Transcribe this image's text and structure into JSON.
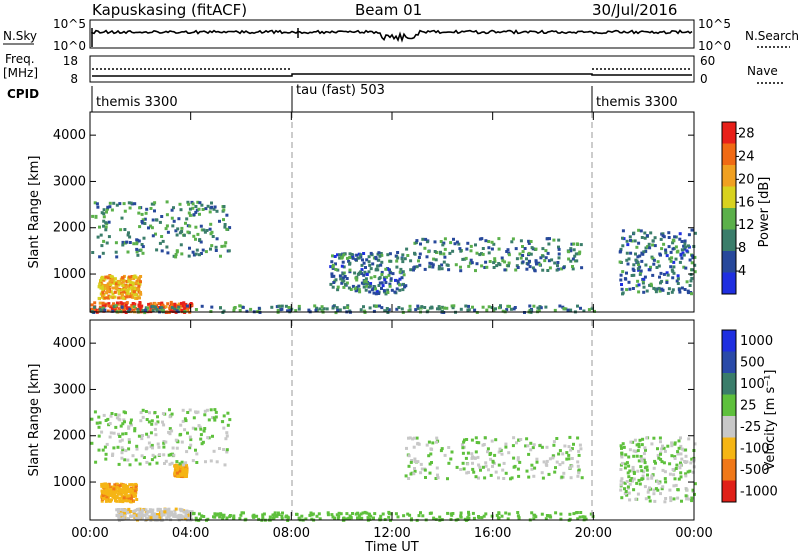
{
  "header": {
    "station": "Kapuskasing (fitACF)",
    "beam": "Beam 01",
    "date": "30/Jul/2016"
  },
  "strip_panels": {
    "nsky_label": "N.Sky",
    "nsky_ticks": [
      "10^5",
      "10^0"
    ],
    "nsearch_label": "N.Search",
    "nsearch_ticks": [
      "10^5",
      "10^0"
    ],
    "freq_label_1": "Freq.",
    "freq_label_2": "[MHz]",
    "freq_ticks": [
      "18",
      "8"
    ],
    "nave_label": "Nave",
    "nave_ticks": [
      "60",
      "0"
    ],
    "cpid_label": "CPID",
    "cpid_segments": [
      {
        "name": "themis 3300",
        "start_hour": 0,
        "end_hour": 8
      },
      {
        "name": "tau (fast) 503",
        "start_hour": 8,
        "end_hour": 20
      },
      {
        "name": "themis 3300",
        "start_hour": 20,
        "end_hour": 24
      }
    ]
  },
  "chart_data": [
    {
      "type": "heatmap",
      "title": "",
      "xlabel": "Time UT",
      "ylabel": "Slant Range [km]",
      "xlim": [
        0,
        24
      ],
      "ylim": [
        180,
        4500
      ],
      "x_ticks": [
        "00:00",
        "04:00",
        "08:00",
        "12:00",
        "16:00",
        "20:00",
        "00:00"
      ],
      "y_ticks": [
        1000,
        2000,
        3000,
        4000
      ],
      "colorbar": {
        "label": "Power [dB]",
        "ticks": [
          4,
          8,
          12,
          16,
          20,
          24,
          28
        ],
        "range": [
          0,
          30
        ],
        "colors": [
          "#1f2fe0",
          "#27489b",
          "#3a7d6a",
          "#5bb04a",
          "#d8d21e",
          "#f0a020",
          "#f06a14",
          "#e8201a"
        ]
      },
      "echo_regions": [
        {
          "t0": 0.0,
          "t1": 4.0,
          "r0": 200,
          "r1": 420,
          "value": 26
        },
        {
          "t0": 0.3,
          "t1": 2.0,
          "r0": 500,
          "r1": 1000,
          "value": 20
        },
        {
          "t0": 0.0,
          "t1": 20.0,
          "r0": 200,
          "r1": 350,
          "value": 10
        },
        {
          "t0": 0.0,
          "t1": 5.5,
          "r0": 1400,
          "r1": 2600,
          "value": 10
        },
        {
          "t0": 9.5,
          "t1": 12.5,
          "r0": 600,
          "r1": 1500,
          "value": 8
        },
        {
          "t0": 12.5,
          "t1": 19.5,
          "r0": 1100,
          "r1": 1800,
          "value": 9
        },
        {
          "t0": 21.0,
          "t1": 24.0,
          "r0": 600,
          "r1": 2000,
          "value": 8
        }
      ]
    },
    {
      "type": "heatmap",
      "title": "",
      "xlabel": "Time UT",
      "ylabel": "Slant Range [km]",
      "xlim": [
        0,
        24
      ],
      "ylim": [
        180,
        4500
      ],
      "x_ticks": [
        "00:00",
        "04:00",
        "08:00",
        "12:00",
        "16:00",
        "20:00",
        "00:00"
      ],
      "y_ticks": [
        1000,
        2000,
        3000,
        4000
      ],
      "colorbar": {
        "label": "Velocity [m s⁻¹]",
        "ticks": [
          "1000",
          "500",
          "100",
          "25",
          "-25",
          "-100",
          "-500",
          "-1000"
        ],
        "range": [
          -1000,
          1000
        ],
        "colors": [
          "#1f2fe0",
          "#2a4aa8",
          "#3a7d6a",
          "#5ec03c",
          "#c8c8c8",
          "#f5b514",
          "#f07818",
          "#e02018"
        ]
      },
      "echo_regions": [
        {
          "t0": 0.4,
          "t1": 1.8,
          "r0": 600,
          "r1": 1000,
          "value": -400
        },
        {
          "t0": 1.0,
          "t1": 4.0,
          "r0": 200,
          "r1": 450,
          "value": -150
        },
        {
          "t0": 3.3,
          "t1": 3.8,
          "r0": 1150,
          "r1": 1400,
          "value": -400
        },
        {
          "t0": 4.0,
          "t1": 20.0,
          "r0": 200,
          "r1": 380,
          "value": 60
        },
        {
          "t0": 0.0,
          "t1": 5.5,
          "r0": 1400,
          "r1": 2600,
          "value": 0
        },
        {
          "t0": 12.5,
          "t1": 19.5,
          "r0": 1100,
          "r1": 2000,
          "value": 0
        },
        {
          "t0": 21.0,
          "t1": 24.0,
          "r0": 600,
          "r1": 2000,
          "value": 0
        }
      ]
    }
  ]
}
